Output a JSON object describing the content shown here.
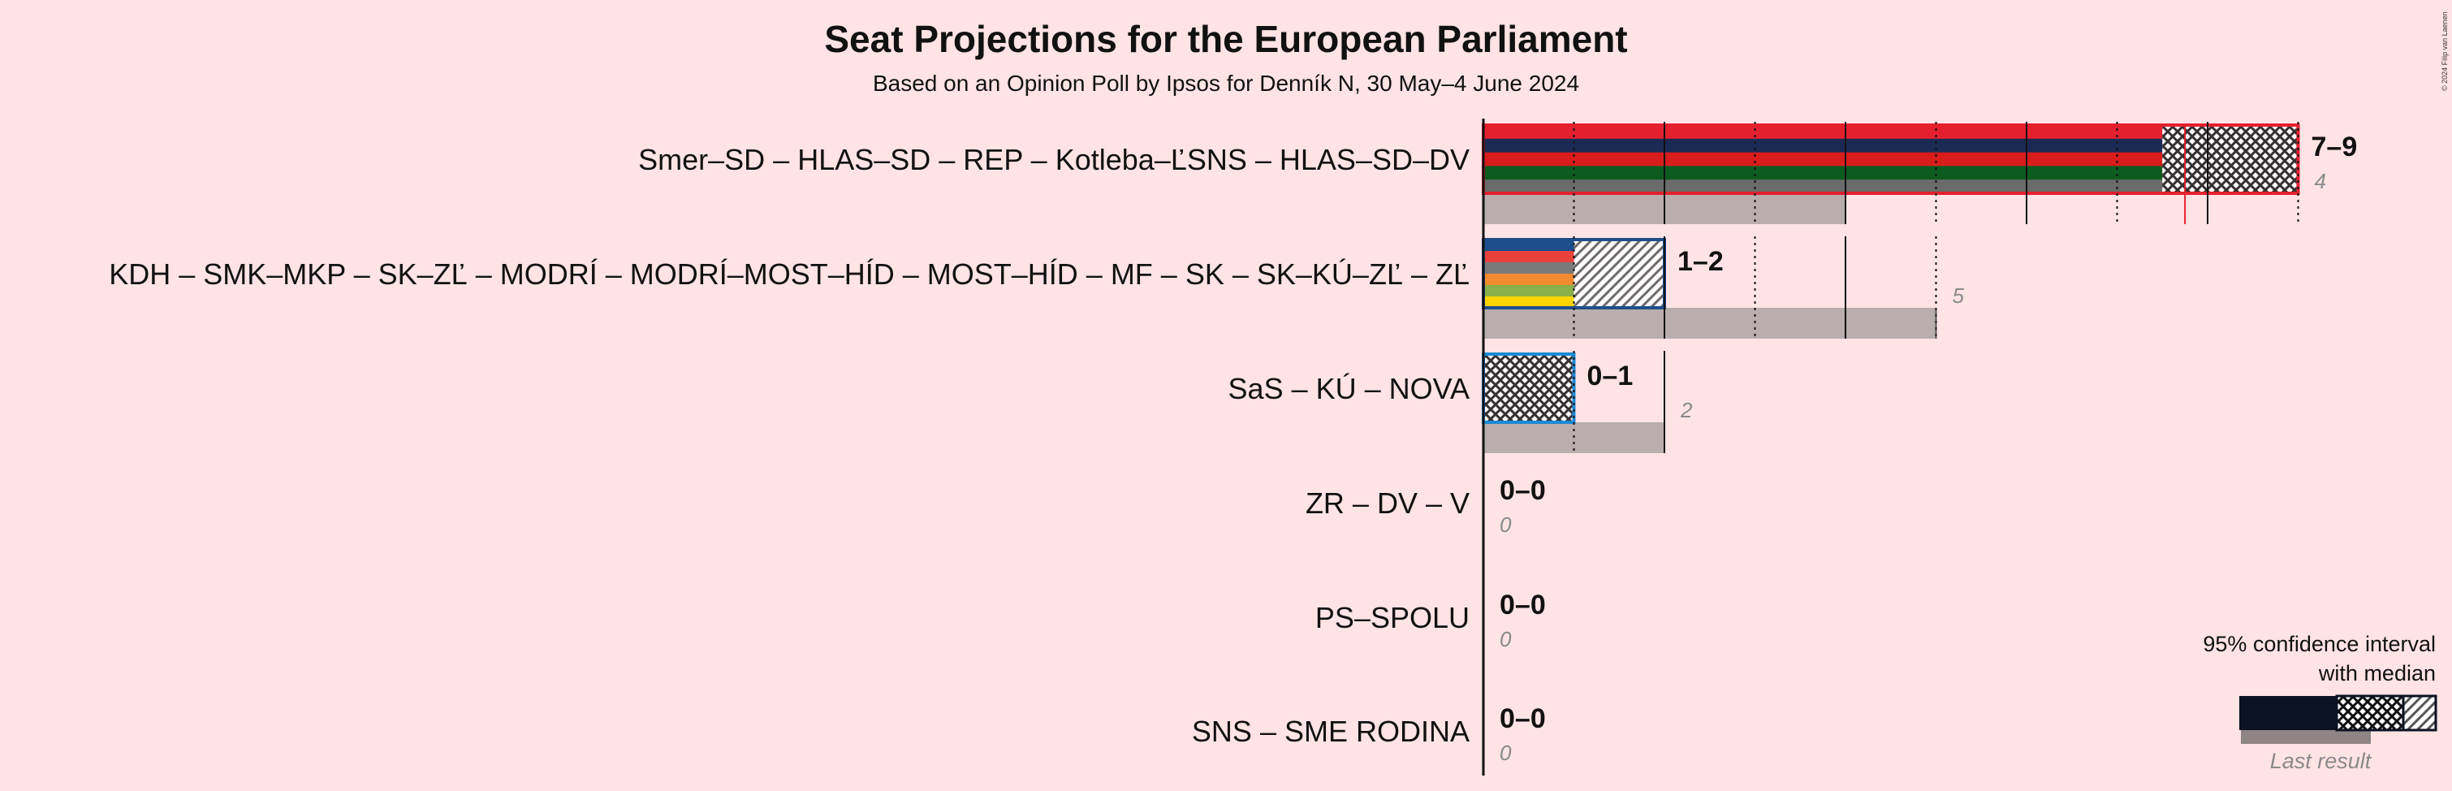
{
  "title": "Seat Projections for the European Parliament",
  "subtitle": "Based on an Opinion Poll by Ipsos for Denník N, 30 May–4 June 2024",
  "copyright": "© 2024 Filip van Laenen",
  "legend": {
    "title_line1": "95% confidence interval",
    "title_line2": "with median",
    "last_result_label": "Last result"
  },
  "chart_data": {
    "type": "bar",
    "title": "Seat Projections for the European Parliament",
    "subtitle": "Based on an Opinion Poll by Ipsos for Denník N, 30 May–4 June 2024",
    "x_range": [
      0,
      9
    ],
    "categories": [
      "Smer–SD – HLAS–SD – REP – Kotleba–ĽSNS – HLAS–SD–DV",
      "KDH – SMK–MKP – SK–ZĽ – MODRÍ – MODRÍ–MOST–HÍD – MOST–HÍD – MF – SK – SK–KÚ–ZĽ – ZĽ",
      "SaS – KÚ – NOVA",
      "ZR – DV – V",
      "PS–SPOLU",
      "SNS – SME RODINA"
    ],
    "series": [
      {
        "name": "95% confidence interval",
        "values": [
          [
            7,
            9
          ],
          [
            1,
            2
          ],
          [
            0,
            1
          ],
          [
            0,
            0
          ],
          [
            0,
            0
          ],
          [
            0,
            0
          ]
        ]
      },
      {
        "name": "Median",
        "values": [
          7.5,
          1,
          0,
          0,
          0,
          0
        ]
      },
      {
        "name": "Last result",
        "values": [
          4,
          5,
          2,
          0,
          0,
          0
        ]
      }
    ],
    "range_labels": [
      "7–9",
      "1–2",
      "0–1",
      "0–0",
      "0–0",
      "0–0"
    ],
    "last_labels": [
      "4",
      "5",
      "2",
      "0",
      "0",
      "0"
    ],
    "party_colors": [
      [
        "#e4202f",
        "#1b2a55",
        "#d91c1c",
        "#0d5c1f",
        "#6b6b6b"
      ],
      [
        "#1e4e8c",
        "#e8423b",
        "#7a7a7a",
        "#f28a2f",
        "#8ab04a",
        "#ffd400"
      ],
      [
        "#1a8ad8",
        "#1e4e8c"
      ],
      [],
      [],
      []
    ]
  }
}
